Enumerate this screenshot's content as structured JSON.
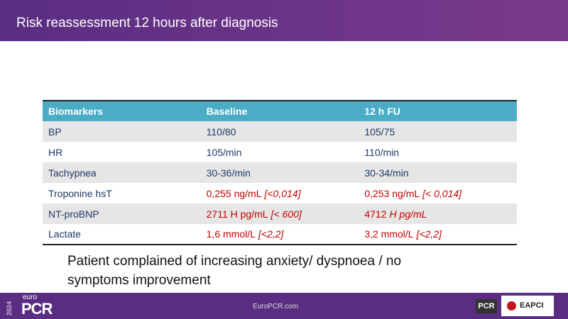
{
  "header": {
    "title": "Risk reassessment 12 hours after diagnosis"
  },
  "table": {
    "columns": [
      "Biomarkers",
      "Baseline",
      "12 h FU"
    ],
    "rows": [
      [
        {
          "parts": [
            {
              "text": "BP",
              "italic": false
            }
          ],
          "alert": false
        },
        {
          "parts": [
            {
              "text": "110/80",
              "italic": false
            }
          ],
          "alert": false
        },
        {
          "parts": [
            {
              "text": "105/75",
              "italic": false
            }
          ],
          "alert": false
        }
      ],
      [
        {
          "parts": [
            {
              "text": "HR",
              "italic": false
            }
          ],
          "alert": false
        },
        {
          "parts": [
            {
              "text": "105/min",
              "italic": false
            }
          ],
          "alert": false
        },
        {
          "parts": [
            {
              "text": "110/min",
              "italic": false
            }
          ],
          "alert": false
        }
      ],
      [
        {
          "parts": [
            {
              "text": "Tachypnea",
              "italic": false
            }
          ],
          "alert": false
        },
        {
          "parts": [
            {
              "text": "30-36/min",
              "italic": false
            }
          ],
          "alert": false
        },
        {
          "parts": [
            {
              "text": "30-34/min",
              "italic": false
            }
          ],
          "alert": false
        }
      ],
      [
        {
          "parts": [
            {
              "text": "Troponine hsT",
              "italic": false
            }
          ],
          "alert": false
        },
        {
          "parts": [
            {
              "text": "0,255 ng/mL",
              "italic": false
            },
            {
              "text": "[<0,014]",
              "italic": true
            }
          ],
          "alert": true
        },
        {
          "parts": [
            {
              "text": "0,253 ng/mL",
              "italic": false
            },
            {
              "text": "[< 0,014]",
              "italic": true
            }
          ],
          "alert": true
        }
      ],
      [
        {
          "parts": [
            {
              "text": "NT-proBNP",
              "italic": false
            }
          ],
          "alert": false
        },
        {
          "parts": [
            {
              "text": "2711 H pg/mL",
              "italic": false
            },
            {
              "text": "[< 600]",
              "italic": true
            }
          ],
          "alert": true
        },
        {
          "parts": [
            {
              "text": "4712",
              "italic": false
            },
            {
              "text": "H pg/mL",
              "italic": true
            }
          ],
          "alert": true
        }
      ],
      [
        {
          "parts": [
            {
              "text": "Lactate",
              "italic": false
            }
          ],
          "alert": false
        },
        {
          "parts": [
            {
              "text": "1,6 mmol/L",
              "italic": false
            },
            {
              "text": "[<2,2]",
              "italic": true
            }
          ],
          "alert": true
        },
        {
          "parts": [
            {
              "text": "3,2 mmol/L",
              "italic": false
            },
            {
              "text": "[<2,2]",
              "italic": true
            }
          ],
          "alert": true
        }
      ]
    ]
  },
  "note": "Patient complained of increasing anxiety/ dyspnoea / no symptoms improvement",
  "footer": {
    "year": "2024",
    "brand_top": "euro",
    "brand": "PCR",
    "url": "EuroPCR.com",
    "logo_pcr": "PCR",
    "logo_eapci": "EAPCI"
  }
}
